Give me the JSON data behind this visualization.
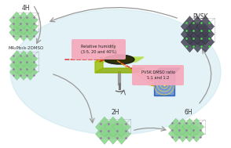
{
  "oval_color": "#cce8f0",
  "oval_alpha": 0.55,
  "label_2H": "2H",
  "label_4H": "4H",
  "label_6H": "6H",
  "label_PVSK": "PVSK",
  "label_DMSO": "MA₂Pb₃I₈·2DMSO",
  "humidity_label": "Relative humidity\n(3-5, 20 and 40%)",
  "ratio_label": "PVSK:DMSO ratio\n1:1 and 1:2",
  "humidity_bg": "#f5a8bc",
  "ratio_bg": "#f5a8bc",
  "crystal_green": "#8dd48e",
  "crystal_green2": "#6ec46e",
  "crystal_purple": "#a06ab0",
  "crystal_dark": "#555555",
  "crystal_line": "#888888",
  "drop_color": "#55cc55",
  "substrate_top": "#b8e050",
  "substrate_dark": "#334400",
  "detector_blue": "#3366bb",
  "detector_inner": "#6699cc",
  "arrow_red": "#dd2222",
  "arrow_yellow": "#ccaa00",
  "gray_arrow": "#999999",
  "pvsk_dark": "#444455",
  "pvsk_green": "#44dd44"
}
